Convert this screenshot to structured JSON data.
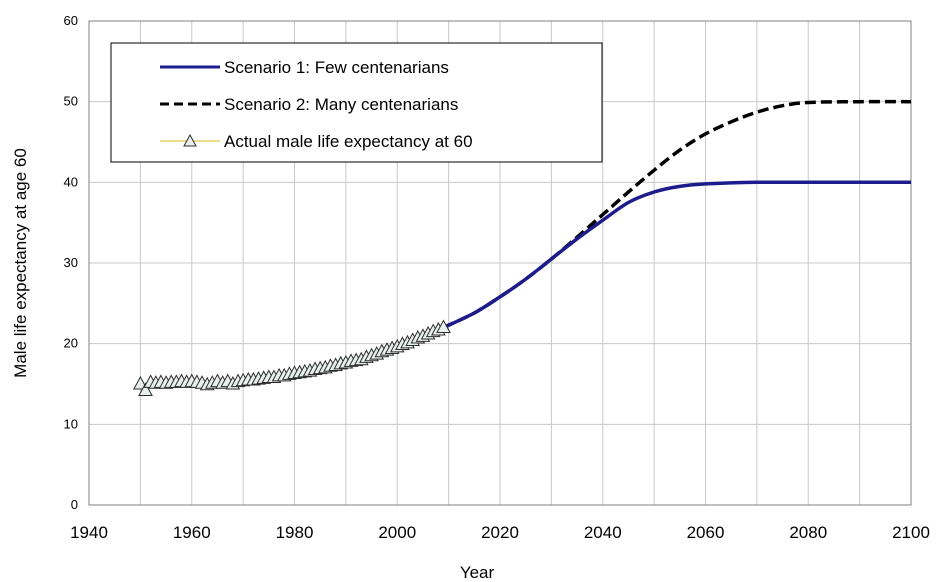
{
  "chart_data": {
    "type": "line",
    "xlabel": "Year",
    "ylabel": "Male life expectancy at age 60",
    "xlim": [
      1940,
      2100
    ],
    "ylim": [
      0,
      60
    ],
    "x_ticks": [
      "1940",
      "1960",
      "1980",
      "2000",
      "2020",
      "2040",
      "2060",
      "2080",
      "2100"
    ],
    "y_ticks": [
      "0",
      "10",
      "20",
      "30",
      "40",
      "50",
      "60"
    ],
    "grid": true,
    "legend_position": "top-left",
    "series": [
      {
        "name": "Scenario 1: Few centenarians",
        "style": "solid",
        "color": "#1c1c8c",
        "points": [
          [
            2009,
            22.0
          ],
          [
            2015,
            23.8
          ],
          [
            2020,
            25.8
          ],
          [
            2025,
            28.0
          ],
          [
            2030,
            30.5
          ],
          [
            2035,
            33.0
          ],
          [
            2040,
            35.3
          ],
          [
            2045,
            37.5
          ],
          [
            2050,
            38.8
          ],
          [
            2055,
            39.5
          ],
          [
            2060,
            39.8
          ],
          [
            2070,
            40.0
          ],
          [
            2080,
            40.0
          ],
          [
            2090,
            40.0
          ],
          [
            2100,
            40.0
          ]
        ]
      },
      {
        "name": "Scenario 2: Many centenarians",
        "style": "dashed",
        "color": "#000000",
        "points": [
          [
            2009,
            22.0
          ],
          [
            2015,
            23.8
          ],
          [
            2020,
            25.8
          ],
          [
            2025,
            28.0
          ],
          [
            2030,
            30.5
          ],
          [
            2035,
            33.2
          ],
          [
            2040,
            36.0
          ],
          [
            2045,
            38.8
          ],
          [
            2050,
            41.5
          ],
          [
            2055,
            44.0
          ],
          [
            2060,
            46.0
          ],
          [
            2065,
            47.5
          ],
          [
            2070,
            48.7
          ],
          [
            2075,
            49.5
          ],
          [
            2080,
            49.9
          ],
          [
            2090,
            50.0
          ],
          [
            2100,
            50.0
          ]
        ]
      },
      {
        "name": "Actual male life expectancy at 60",
        "style": "markers",
        "color": "#e8d060",
        "marker": "triangle",
        "marker_fill": "#e8f0ee",
        "points": [
          [
            1950,
            15.0
          ],
          [
            1951,
            14.2
          ],
          [
            1952,
            15.2
          ],
          [
            1953,
            15.1
          ],
          [
            1954,
            15.2
          ],
          [
            1955,
            15.1
          ],
          [
            1956,
            15.2
          ],
          [
            1957,
            15.2
          ],
          [
            1958,
            15.3
          ],
          [
            1959,
            15.2
          ],
          [
            1960,
            15.3
          ],
          [
            1961,
            15.2
          ],
          [
            1962,
            15.1
          ],
          [
            1963,
            14.9
          ],
          [
            1964,
            15.1
          ],
          [
            1965,
            15.3
          ],
          [
            1966,
            15.1
          ],
          [
            1967,
            15.3
          ],
          [
            1968,
            15.0
          ],
          [
            1969,
            15.3
          ],
          [
            1970,
            15.4
          ],
          [
            1971,
            15.5
          ],
          [
            1972,
            15.5
          ],
          [
            1973,
            15.6
          ],
          [
            1974,
            15.7
          ],
          [
            1975,
            15.8
          ],
          [
            1976,
            15.8
          ],
          [
            1977,
            16.0
          ],
          [
            1978,
            16.0
          ],
          [
            1979,
            16.2
          ],
          [
            1980,
            16.3
          ],
          [
            1981,
            16.4
          ],
          [
            1982,
            16.5
          ],
          [
            1983,
            16.6
          ],
          [
            1984,
            16.8
          ],
          [
            1985,
            16.9
          ],
          [
            1986,
            17.0
          ],
          [
            1987,
            17.2
          ],
          [
            1988,
            17.3
          ],
          [
            1989,
            17.5
          ],
          [
            1990,
            17.6
          ],
          [
            1991,
            17.8
          ],
          [
            1992,
            17.9
          ],
          [
            1993,
            18.0
          ],
          [
            1994,
            18.3
          ],
          [
            1995,
            18.5
          ],
          [
            1996,
            18.7
          ],
          [
            1997,
            19.0
          ],
          [
            1998,
            19.2
          ],
          [
            1999,
            19.4
          ],
          [
            2000,
            19.6
          ],
          [
            2001,
            19.9
          ],
          [
            2002,
            20.1
          ],
          [
            2003,
            20.4
          ],
          [
            2004,
            20.7
          ],
          [
            2005,
            20.9
          ],
          [
            2006,
            21.2
          ],
          [
            2007,
            21.5
          ],
          [
            2008,
            21.7
          ],
          [
            2009,
            22.0
          ]
        ]
      }
    ]
  }
}
